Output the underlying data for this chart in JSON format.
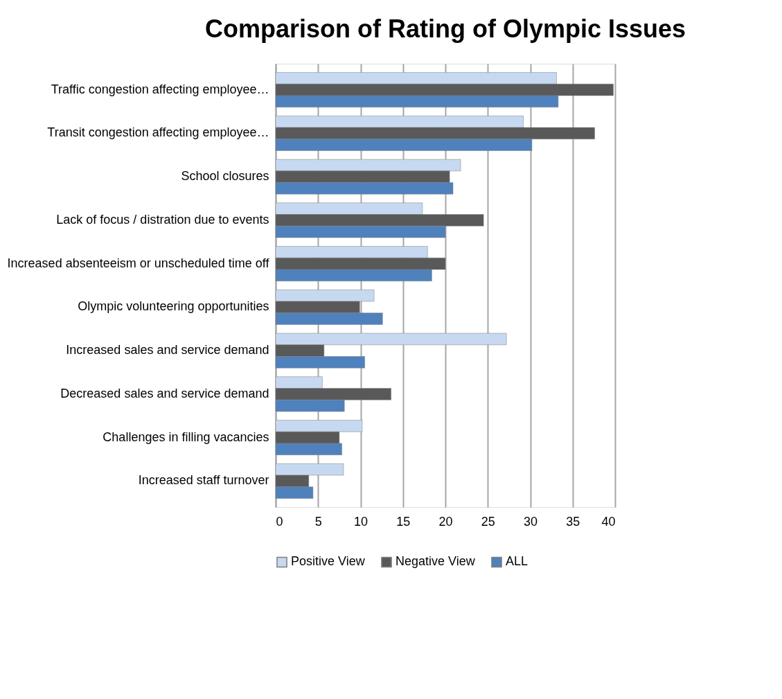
{
  "chart_data": {
    "type": "bar",
    "orientation": "horizontal",
    "title": "Comparison of Rating of Olympic Issues",
    "categories": [
      "Traffic congestion affecting employee…",
      "Transit congestion affecting employee…",
      "School closures",
      "Lack of focus / distration due to events",
      "Increased absenteeism or unscheduled time off",
      "Olympic volunteering opportunities",
      "Increased sales and service demand",
      "Decreased sales and service demand",
      "Challenges in filling vacancies",
      "Increased staff turnover"
    ],
    "series": [
      {
        "name": "Positive View",
        "color": "#c6d9f1",
        "values": [
          33.1,
          29.2,
          21.8,
          17.3,
          17.9,
          11.6,
          27.2,
          5.5,
          10.2,
          8.0
        ]
      },
      {
        "name": "Negative View",
        "color": "#595959",
        "values": [
          39.8,
          37.6,
          20.5,
          24.5,
          20.0,
          9.9,
          5.7,
          13.6,
          7.5,
          3.9
        ]
      },
      {
        "name": "ALL",
        "color": "#4f81bd",
        "values": [
          33.3,
          30.2,
          20.9,
          20.0,
          18.4,
          12.6,
          10.5,
          8.1,
          7.8,
          4.4
        ]
      }
    ],
    "xlim": [
      0,
      40
    ],
    "xticks": [
      0,
      5,
      10,
      15,
      20,
      25,
      30,
      35,
      40
    ],
    "grid": "x",
    "legend": "bottom"
  }
}
